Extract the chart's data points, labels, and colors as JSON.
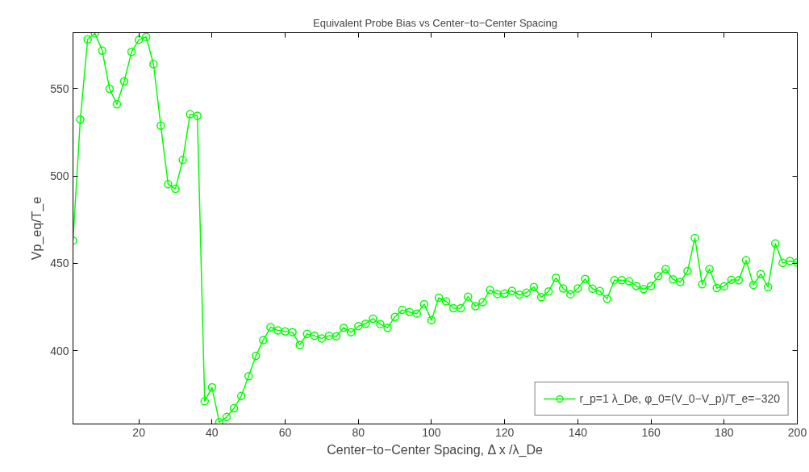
{
  "chart_data": {
    "type": "line",
    "title": "Equivalent Probe Bias vs Center−to−Center Spacing",
    "xlabel": "Center−to−Center Spacing, Δ x /λ_De",
    "ylabel": "Vp_eq/T_e",
    "x": [
      2,
      4,
      6,
      8,
      10,
      12,
      14,
      16,
      18,
      20,
      22,
      24,
      26,
      28,
      30,
      32,
      34,
      36,
      38,
      40,
      42,
      44,
      46,
      48,
      50,
      52,
      54,
      56,
      58,
      60,
      62,
      64,
      66,
      68,
      70,
      72,
      74,
      76,
      78,
      80,
      82,
      84,
      86,
      88,
      90,
      92,
      94,
      96,
      98,
      100,
      102,
      104,
      106,
      108,
      110,
      112,
      114,
      116,
      118,
      120,
      122,
      124,
      126,
      128,
      130,
      132,
      134,
      136,
      138,
      140,
      142,
      144,
      146,
      148,
      150,
      152,
      154,
      156,
      158,
      160,
      162,
      164,
      166,
      168,
      170,
      172,
      174,
      176,
      178,
      180,
      182,
      184,
      186,
      188,
      190,
      192,
      194,
      196,
      198,
      200
    ],
    "series": [
      {
        "name": "r_p=1 λ_De, φ_0=(V_0−V_p)/T_e=−320",
        "color": "#00ff00",
        "values": [
          463,
          532.3,
          578.2,
          581.7,
          571.7,
          549.9,
          541,
          554.2,
          571,
          577.9,
          579.6,
          564,
          528.8,
          495.3,
          492.6,
          509.1,
          535.3,
          534.4,
          371,
          379,
          359,
          362,
          367,
          374,
          385.4,
          397,
          406,
          413.4,
          411.6,
          411,
          410.5,
          403.3,
          409.6,
          408.5,
          407,
          408.5,
          408.2,
          413.1,
          410.5,
          414,
          415.4,
          418.3,
          415.2,
          413.1,
          419.3,
          423.3,
          422.1,
          421.2,
          426.6,
          417.5,
          430.3,
          428.2,
          424.3,
          424.3,
          430.9,
          425.4,
          427.7,
          434.7,
          432.4,
          432.7,
          434.2,
          432,
          433.2,
          436.4,
          430.6,
          433.9,
          441.7,
          435.6,
          432.3,
          435.6,
          441,
          435.5,
          434.1,
          429.7,
          440.3,
          440.3,
          439.7,
          437,
          435.2,
          437,
          442.6,
          446.7,
          440.8,
          439.3,
          445.5,
          464.5,
          438,
          446.7,
          435.8,
          436.8,
          440.5,
          440.3,
          451.7,
          437.6,
          443.8,
          436.4,
          461.3,
          450.2,
          451.3,
          450.5
        ]
      }
    ],
    "xlim": [
      2,
      200
    ],
    "ylim": [
      358,
      582
    ],
    "xticks": [
      20,
      40,
      60,
      80,
      100,
      120,
      140,
      160,
      180,
      200
    ],
    "yticks": [
      400,
      450,
      500,
      550
    ],
    "grid": false,
    "legend": "bottom right",
    "marker": "circle",
    "line_style": "solid"
  }
}
